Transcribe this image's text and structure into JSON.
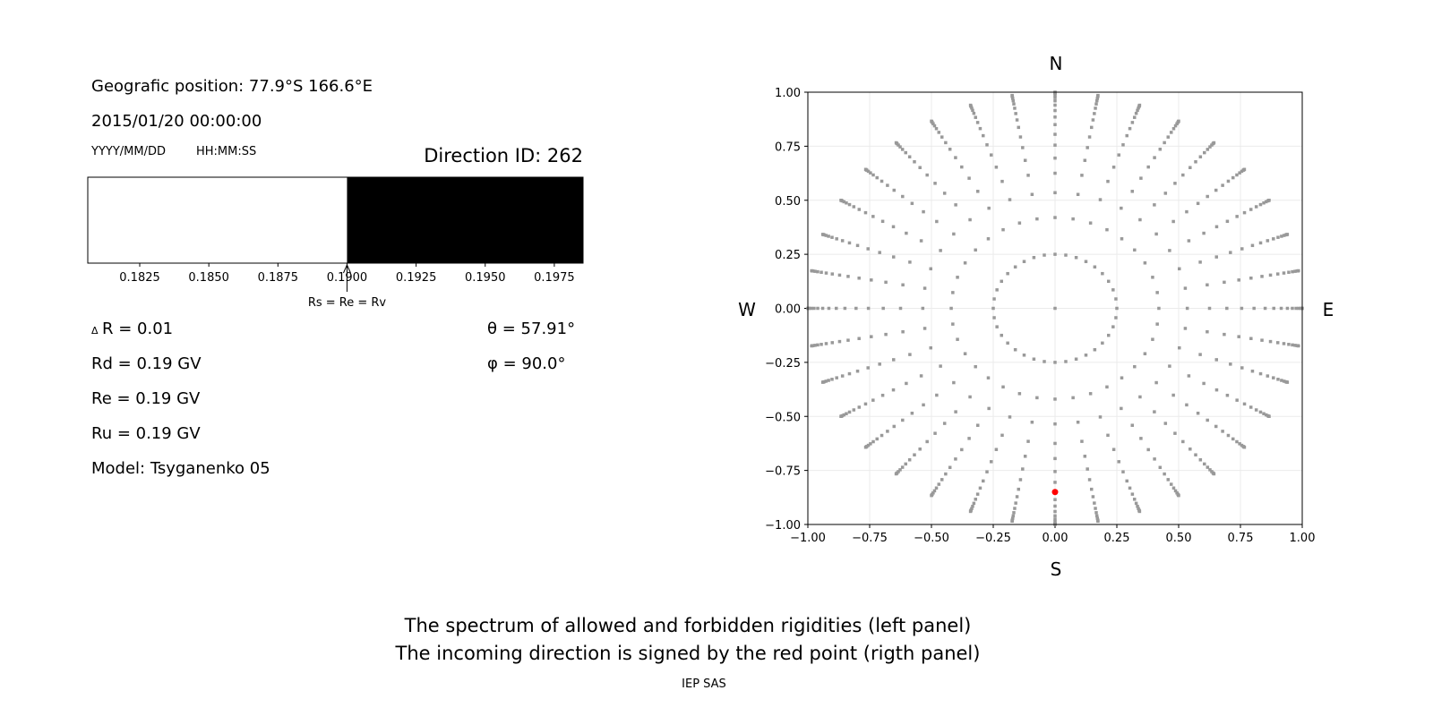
{
  "left_panel": {
    "position": "Geografic position: 77.9°S 166.6°E",
    "datetime": "2015/01/20 00:00:00",
    "date_format": "YYYY/MM/DD",
    "time_format": "HH:MM:SS",
    "direction_id": "Direction ID: 262",
    "delta_r": "R = 0.01",
    "delta_symbol": "Δ",
    "rd": "Rd = 0.19 GV",
    "re": "Re = 0.19 GV",
    "ru": "Ru = 0.19 GV",
    "model": "Model: Tsyganenko 05",
    "theta": "θ = 57.91°",
    "phi": "φ = 90.0°"
  },
  "right_panel": {
    "north": "N",
    "south": "S",
    "west": "W",
    "east": "E"
  },
  "caption": {
    "line1": "The spectrum of allowed and forbidden rigidities (left panel)",
    "line2": "The incoming direction is signed by the red point (rigth panel)",
    "credit": "IEP SAS"
  },
  "chart_data": [
    {
      "type": "bar",
      "xlim": [
        0.18062,
        0.19854
      ],
      "xticks": [
        "0.1825",
        "0.1850",
        "0.1875",
        "0.1900",
        "0.1925",
        "0.1950",
        "0.1975"
      ],
      "xtick_values": [
        0.1825,
        0.185,
        0.1875,
        0.19,
        0.1925,
        0.195,
        0.1975
      ],
      "segments": [
        {
          "from": 0.18062,
          "to": 0.19,
          "color": "#ffffff"
        },
        {
          "from": 0.19,
          "to": 0.19854,
          "color": "#000000"
        }
      ],
      "annotation": {
        "text": "Rs = Re = Rv",
        "x": 0.19
      }
    },
    {
      "type": "scatter",
      "xlim": [
        -1,
        1
      ],
      "ylim": [
        -1,
        1
      ],
      "grid": true,
      "xticks": [
        "−1.00",
        "−0.75",
        "−0.50",
        "−0.25",
        "0.00",
        "0.25",
        "0.50",
        "0.75",
        "1.00"
      ],
      "yticks": [
        "1.00",
        "0.75",
        "0.50",
        "0.25",
        "0.00",
        "−0.25",
        "−0.50",
        "−0.75",
        "−1.00"
      ],
      "tick_values": [
        -1,
        -0.75,
        -0.5,
        -0.25,
        0,
        0.25,
        0.5,
        0.75,
        1
      ],
      "point_color": "#999999",
      "highlight_color": "#ff0000",
      "center_point": [
        0,
        0
      ],
      "azimuth_step_deg": 10,
      "radii": [
        0.25,
        0.42,
        0.535,
        0.625,
        0.695,
        0.755,
        0.805,
        0.85,
        0.885,
        0.915,
        0.94,
        0.96,
        0.975,
        0.986,
        0.994,
        0.998,
        1.0
      ],
      "highlight_point": [
        0,
        -0.85
      ]
    }
  ]
}
